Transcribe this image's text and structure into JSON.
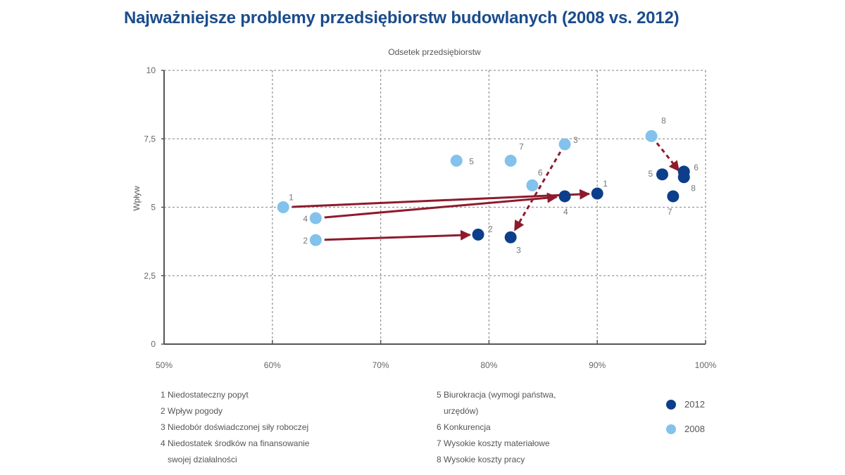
{
  "chart_data": {
    "type": "scatter",
    "title": "Najważniejsze problemy przedsiębiorstw budowlanych (2008 vs. 2012)",
    "xlabel": "Odsetek przedsiębiorstw",
    "ylabel": "Wpływ",
    "xlim": [
      50,
      100
    ],
    "ylim": [
      0,
      10
    ],
    "x_ticks": [
      "50%",
      "60%",
      "70%",
      "80%",
      "90%",
      "100%"
    ],
    "x_tick_values": [
      50,
      60,
      70,
      80,
      90,
      100
    ],
    "y_ticks": [
      "0",
      "2,5",
      "5",
      "7,5",
      "10"
    ],
    "y_tick_values": [
      0,
      2.5,
      5,
      7.5,
      10
    ],
    "grid": true,
    "colors": {
      "2012": "#0d3e8c",
      "2008": "#82c2ec",
      "arrow": "#8e1b2d"
    },
    "series": [
      {
        "name": "2008",
        "points": [
          {
            "id": "1",
            "x": 61,
            "y": 5.0
          },
          {
            "id": "2",
            "x": 64,
            "y": 3.8
          },
          {
            "id": "3",
            "x": 87,
            "y": 7.3
          },
          {
            "id": "4",
            "x": 64,
            "y": 4.6
          },
          {
            "id": "5",
            "x": 77,
            "y": 6.7
          },
          {
            "id": "6",
            "x": 84,
            "y": 5.8
          },
          {
            "id": "7",
            "x": 82,
            "y": 6.7
          },
          {
            "id": "8",
            "x": 95,
            "y": 7.6
          }
        ]
      },
      {
        "name": "2012",
        "points": [
          {
            "id": "1",
            "x": 90,
            "y": 5.5
          },
          {
            "id": "2",
            "x": 79,
            "y": 4.0
          },
          {
            "id": "3",
            "x": 82,
            "y": 3.9
          },
          {
            "id": "4",
            "x": 87,
            "y": 5.4
          },
          {
            "id": "5",
            "x": 96,
            "y": 6.2
          },
          {
            "id": "6",
            "x": 98,
            "y": 6.3
          },
          {
            "id": "7",
            "x": 97,
            "y": 5.4
          },
          {
            "id": "8",
            "x": 98,
            "y": 6.1
          }
        ]
      }
    ],
    "arrows": [
      {
        "id": "1",
        "style": "solid"
      },
      {
        "id": "2",
        "style": "solid"
      },
      {
        "id": "4",
        "style": "solid"
      },
      {
        "id": "3",
        "style": "dashed"
      },
      {
        "id": "8",
        "style": "dashed"
      }
    ],
    "legend_items": [
      "1 Niedostateczny popyt",
      "2 Wpływ pogody",
      "3 Niedobór doświadczonej siły roboczej",
      "4 Niedostatek środków na finansowanie",
      "swojej działalności",
      "5 Biurokracja (wymogi państwa,",
      "urzędów)",
      "6 Konkurencja",
      "7 Wysokie koszty materiałowe",
      "8 Wysokie koszty pracy"
    ],
    "legend_series": [
      "2012",
      "2008"
    ],
    "legend_placement": "bottom"
  }
}
